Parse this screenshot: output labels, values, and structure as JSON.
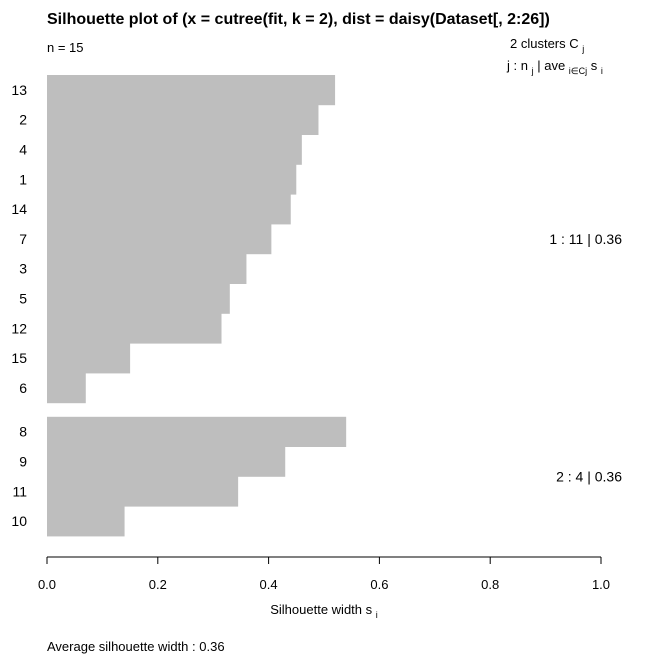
{
  "chart_data": {
    "type": "bar",
    "orientation": "horizontal",
    "title": "Silhouette plot of (x = cutree(fit, k = 2), dist = daisy(Dataset[, 2:26])",
    "n_label": "n = 15",
    "legend": {
      "header": "2  clusters  C",
      "header_sub": "j",
      "formula_j": "j :  n",
      "formula_j_sub": "j",
      "formula_sep": " | ave",
      "formula_ave_sub": "i∈Cj",
      "formula_s": " s",
      "formula_s_sub": "i"
    },
    "xlabel": "Silhouette width s",
    "xlabel_sub": "i",
    "xlim": [
      0,
      1
    ],
    "xticks": [
      "0.0",
      "0.2",
      "0.4",
      "0.6",
      "0.8",
      "1.0"
    ],
    "bar_color": "#bebebe",
    "clusters": [
      {
        "summary": "1 :   11  |  0.36",
        "labels": [
          "13",
          "2",
          "4",
          "1",
          "14",
          "7",
          "3",
          "5",
          "12",
          "15",
          "6"
        ],
        "values": [
          0.52,
          0.49,
          0.46,
          0.45,
          0.44,
          0.405,
          0.36,
          0.33,
          0.315,
          0.15,
          0.07
        ]
      },
      {
        "summary": "2 :   4  |  0.36",
        "labels": [
          "8",
          "9",
          "11",
          "10"
        ],
        "values": [
          0.54,
          0.43,
          0.345,
          0.14
        ]
      }
    ],
    "footer": "Average silhouette width :  0.36"
  }
}
